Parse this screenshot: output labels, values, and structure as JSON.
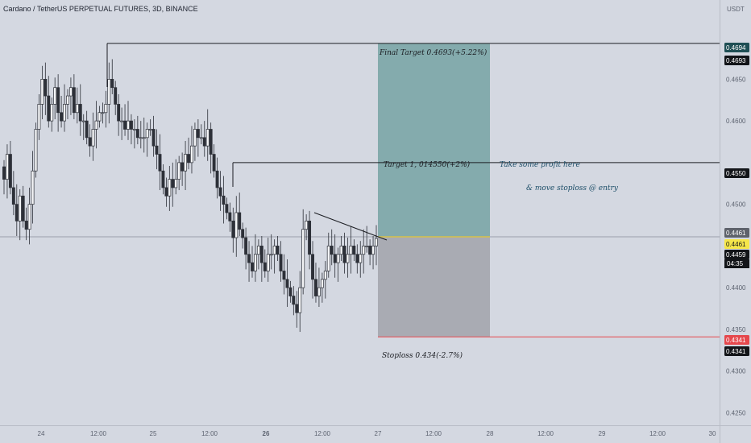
{
  "header": {
    "title": "Cardano / TetherUS PERPETUAL FUTURES, 3D, BINANCE",
    "currency": "USDT"
  },
  "colors": {
    "background": "#d4d8e1",
    "target_zone": "#84abad",
    "stop_zone": "#a9abb3",
    "candle": "#2d3038",
    "stop_line": "#e5484d",
    "entry_line": "#d7c24a",
    "annotation": "#1d4e68"
  },
  "chart_data": {
    "type": "candlestick",
    "ylim": [
      0.4235,
      0.4745
    ],
    "yticks": [
      "0.4650",
      "0.4600",
      "0.4500",
      "0.4400",
      "0.4350",
      "0.4300",
      "0.4250"
    ],
    "xticks": [
      "24",
      "12:00",
      "25",
      "12:00",
      "26",
      "12:00",
      "27",
      "12:00",
      "28",
      "12:00",
      "29",
      "12:00",
      "30"
    ],
    "xtick_bold_index": 4,
    "levels": {
      "final_target": 0.4693,
      "target1": 0.455,
      "entry": 0.4461,
      "last": 0.4459,
      "stop": 0.4341
    },
    "price_tags": [
      {
        "text": "0.4694",
        "value": 0.4694,
        "style": "dark-teal"
      },
      {
        "text": "0.4693",
        "value": 0.4693,
        "style": "black"
      },
      {
        "text": "0.4550",
        "value": 0.455,
        "style": "black"
      },
      {
        "text": "0.4461",
        "value": 0.4461,
        "style": "gray"
      },
      {
        "text": "0.4461",
        "value": 0.4461,
        "style": "yellow"
      },
      {
        "text": "0.4459",
        "value": 0.4459,
        "style": "black"
      },
      {
        "text": "0.4341",
        "value": 0.4341,
        "style": "red"
      },
      {
        "text": "0.4341",
        "value": 0.4341,
        "style": "black"
      }
    ],
    "countdown": "04:35",
    "annotations": {
      "final_target": "Final Target 0.4693(+5.22%)",
      "target1": "Target 1, 014550(+2%)",
      "take_profit": "Take some profit here",
      "move_stop": "& move stoploss @ entry",
      "stoploss": "Stoploss 0.434(-2.7%)"
    },
    "candles": [
      0.453,
      0.456,
      0.452,
      0.45,
      0.448,
      0.451,
      0.448,
      0.447,
      0.45,
      0.454,
      0.459,
      0.462,
      0.465,
      0.463,
      0.46,
      0.462,
      0.464,
      0.461,
      0.46,
      0.462,
      0.463,
      0.464,
      0.461,
      0.462,
      0.46,
      0.46,
      0.458,
      0.457,
      0.459,
      0.46,
      0.461,
      0.461,
      0.462,
      0.465,
      0.464,
      0.462,
      0.46,
      0.46,
      0.459,
      0.46,
      0.459,
      0.459,
      0.458,
      0.458,
      0.458,
      0.459,
      0.459,
      0.457,
      0.456,
      0.454,
      0.452,
      0.451,
      0.453,
      0.452,
      0.453,
      0.455,
      0.454,
      0.456,
      0.455,
      0.457,
      0.459,
      0.458,
      0.458,
      0.457,
      0.459,
      0.456,
      0.454,
      0.452,
      0.451,
      0.45,
      0.449,
      0.448,
      0.446,
      0.449,
      0.447,
      0.446,
      0.444,
      0.443,
      0.442,
      0.444,
      0.445,
      0.443,
      0.442,
      0.444,
      0.444,
      0.445,
      0.444,
      0.442,
      0.441,
      0.44,
      0.439,
      0.438,
      0.437,
      0.44,
      0.447,
      0.448,
      0.444,
      0.441,
      0.439,
      0.44,
      0.441,
      0.442,
      0.445,
      0.444,
      0.443,
      0.444,
      0.445,
      0.443,
      0.444,
      0.445,
      0.444,
      0.443,
      0.444,
      0.445,
      0.445,
      0.444,
      0.445,
      0.4459
    ]
  }
}
